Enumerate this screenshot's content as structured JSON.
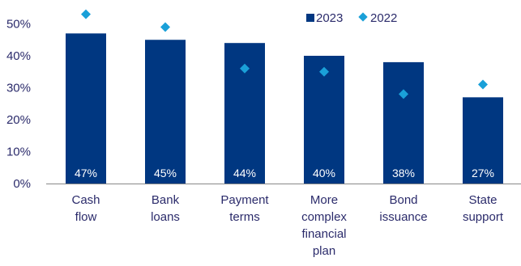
{
  "chart_data": {
    "type": "bar",
    "categories": [
      [
        "Cash",
        "flow"
      ],
      [
        "Bank",
        "loans"
      ],
      [
        "Payment",
        "terms"
      ],
      [
        "More",
        "complex",
        "financial",
        "plan"
      ],
      [
        "Bond",
        "issuance"
      ],
      [
        "State",
        "support"
      ]
    ],
    "series": [
      {
        "name": "2023",
        "kind": "bar",
        "values": [
          47,
          45,
          44,
          40,
          38,
          27
        ],
        "data_labels": [
          "47%",
          "45%",
          "44%",
          "40%",
          "38%",
          "27%"
        ]
      },
      {
        "name": "2022",
        "kind": "marker",
        "values": [
          53,
          49,
          36,
          35,
          28,
          31
        ]
      }
    ],
    "y_ticks": [
      "0%",
      "10%",
      "20%",
      "30%",
      "40%",
      "50%"
    ],
    "ylim": [
      0,
      55
    ],
    "grid": false,
    "legend_position": "top-right",
    "colors": {
      "bar": "#003781",
      "marker": "#1aa0d8",
      "text": "#2b2b6b",
      "axis": "#888888"
    },
    "title": "",
    "xlabel": "",
    "ylabel": ""
  }
}
